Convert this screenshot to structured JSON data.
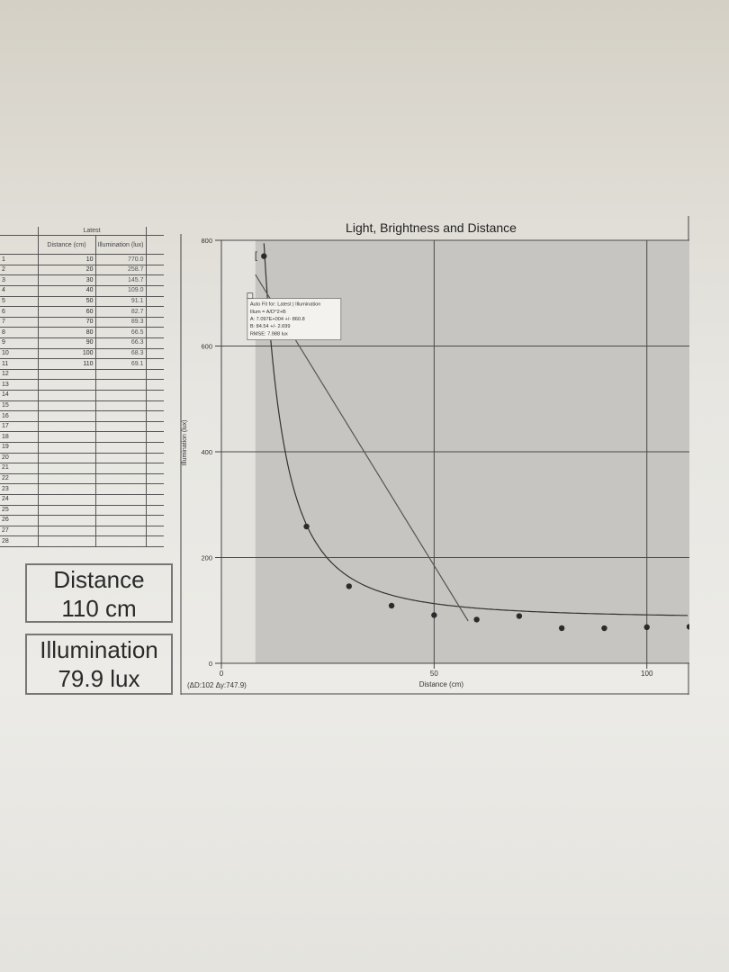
{
  "table": {
    "group_header": "Latest",
    "col_distance": "Distance (cm)",
    "col_illumination": "Illumination (lux)",
    "row_numbers": [
      "1",
      "2",
      "3",
      "4",
      "5",
      "6",
      "7",
      "8",
      "9",
      "10",
      "11",
      "12",
      "13",
      "14",
      "15",
      "16",
      "17",
      "18",
      "19",
      "20",
      "21",
      "22",
      "23",
      "24",
      "25",
      "26",
      "27",
      "28"
    ],
    "distance": [
      "10",
      "20",
      "30",
      "40",
      "50",
      "60",
      "70",
      "80",
      "90",
      "100",
      "110"
    ],
    "illumination": [
      "770.0",
      "258.7",
      "145.7",
      "109.0",
      "91.1",
      "82.7",
      "89.3",
      "66.5",
      "66.3",
      "68.3",
      "69.1"
    ]
  },
  "meters": {
    "distance_label": "Distance",
    "distance_value": "110 cm",
    "illumination_label": "Illumination",
    "illumination_value": "79.9 lux"
  },
  "fit_box": {
    "lines": [
      "Auto Fit for: Latest | Illumination",
      "Illum = A/D^2+B",
      "A: 7.097E+004 +/- 860.8",
      "B: 84.54 +/- 2.699",
      "RMSE: 7.988 lux"
    ]
  },
  "readout": "(ΔD:102 Δy:747.9)",
  "chart_data": {
    "type": "scatter",
    "title": "Light, Brightness and Distance",
    "xlabel": "Distance (cm)",
    "ylabel": "Illumination (lux)",
    "xlim": [
      0,
      110
    ],
    "ylim": [
      0,
      800
    ],
    "x_ticks": [
      "0",
      "50",
      "100"
    ],
    "y_ticks": [
      "0",
      "200",
      "400",
      "600",
      "800"
    ],
    "grid": true,
    "series": [
      {
        "x": [
          10,
          20,
          30,
          40,
          50,
          60,
          70,
          80,
          90,
          100,
          110
        ],
        "y": [
          770,
          258.7,
          145.7,
          109.0,
          91.1,
          82.7,
          89.3,
          66.5,
          66.3,
          68.3,
          69.1
        ]
      }
    ],
    "fit": {
      "formula": "Illum = A/D^2+B",
      "A": 70970,
      "B": 84.54
    },
    "tangent_line": {
      "x": [
        8,
        58
      ],
      "y": [
        735,
        80
      ]
    },
    "selection_range": [
      8,
      110
    ],
    "colors": {
      "plot_bg": "#c6c5c1",
      "selection_bg": "#b3b2ae",
      "marker": "#2b2b2b",
      "line": "#555555"
    }
  }
}
